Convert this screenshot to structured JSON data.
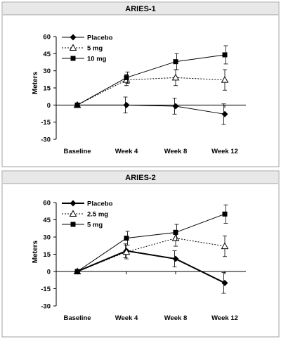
{
  "colors": {
    "line": "#000000",
    "panel_border": "#a0a0a0",
    "title_bar": "#e8e8e8",
    "background": "#ffffff"
  },
  "chart_data": [
    {
      "type": "line",
      "title": "ARIES-1",
      "ylabel": "Meters",
      "xlabel": "",
      "categories": [
        "Baseline",
        "Week 4",
        "Week 8",
        "Week 12"
      ],
      "ylim": [
        -30,
        60
      ],
      "yticks": [
        -30,
        -15,
        0,
        15,
        30,
        45,
        60
      ],
      "legend_position": "top-left",
      "series": [
        {
          "name": "Placebo",
          "marker": "diamond",
          "line_style": "solid",
          "line_weight": "normal",
          "values": [
            0,
            0,
            -1,
            -8
          ],
          "error": [
            0,
            7,
            7,
            9
          ]
        },
        {
          "name": "5 mg",
          "marker": "triangle-open",
          "line_style": "dotted",
          "line_weight": "normal",
          "values": [
            0,
            22,
            24,
            22
          ],
          "error": [
            0,
            5,
            7,
            9
          ]
        },
        {
          "name": "10 mg",
          "marker": "square",
          "line_style": "solid",
          "line_weight": "normal",
          "values": [
            0,
            24,
            38,
            44
          ],
          "error": [
            0,
            5,
            7,
            8
          ]
        }
      ]
    },
    {
      "type": "line",
      "title": "ARIES-2",
      "ylabel": "Meters",
      "xlabel": "",
      "categories": [
        "Baseline",
        "Week 4",
        "Week 8",
        "Week 12"
      ],
      "ylim": [
        -30,
        60
      ],
      "yticks": [
        -30,
        -15,
        0,
        15,
        30,
        45,
        60
      ],
      "legend_position": "top-left",
      "series": [
        {
          "name": "Placebo",
          "marker": "diamond",
          "line_style": "solid",
          "line_weight": "bold",
          "values": [
            0,
            18,
            11,
            -10
          ],
          "error": [
            0,
            6,
            7,
            9
          ]
        },
        {
          "name": "2.5 mg",
          "marker": "triangle-open",
          "line_style": "dotted",
          "line_weight": "normal",
          "values": [
            0,
            17,
            29,
            22
          ],
          "error": [
            0,
            6,
            7,
            9
          ]
        },
        {
          "name": "5 mg",
          "marker": "square",
          "line_style": "solid",
          "line_weight": "normal",
          "values": [
            0,
            29,
            34,
            50
          ],
          "error": [
            0,
            6,
            7,
            8
          ]
        }
      ]
    }
  ]
}
